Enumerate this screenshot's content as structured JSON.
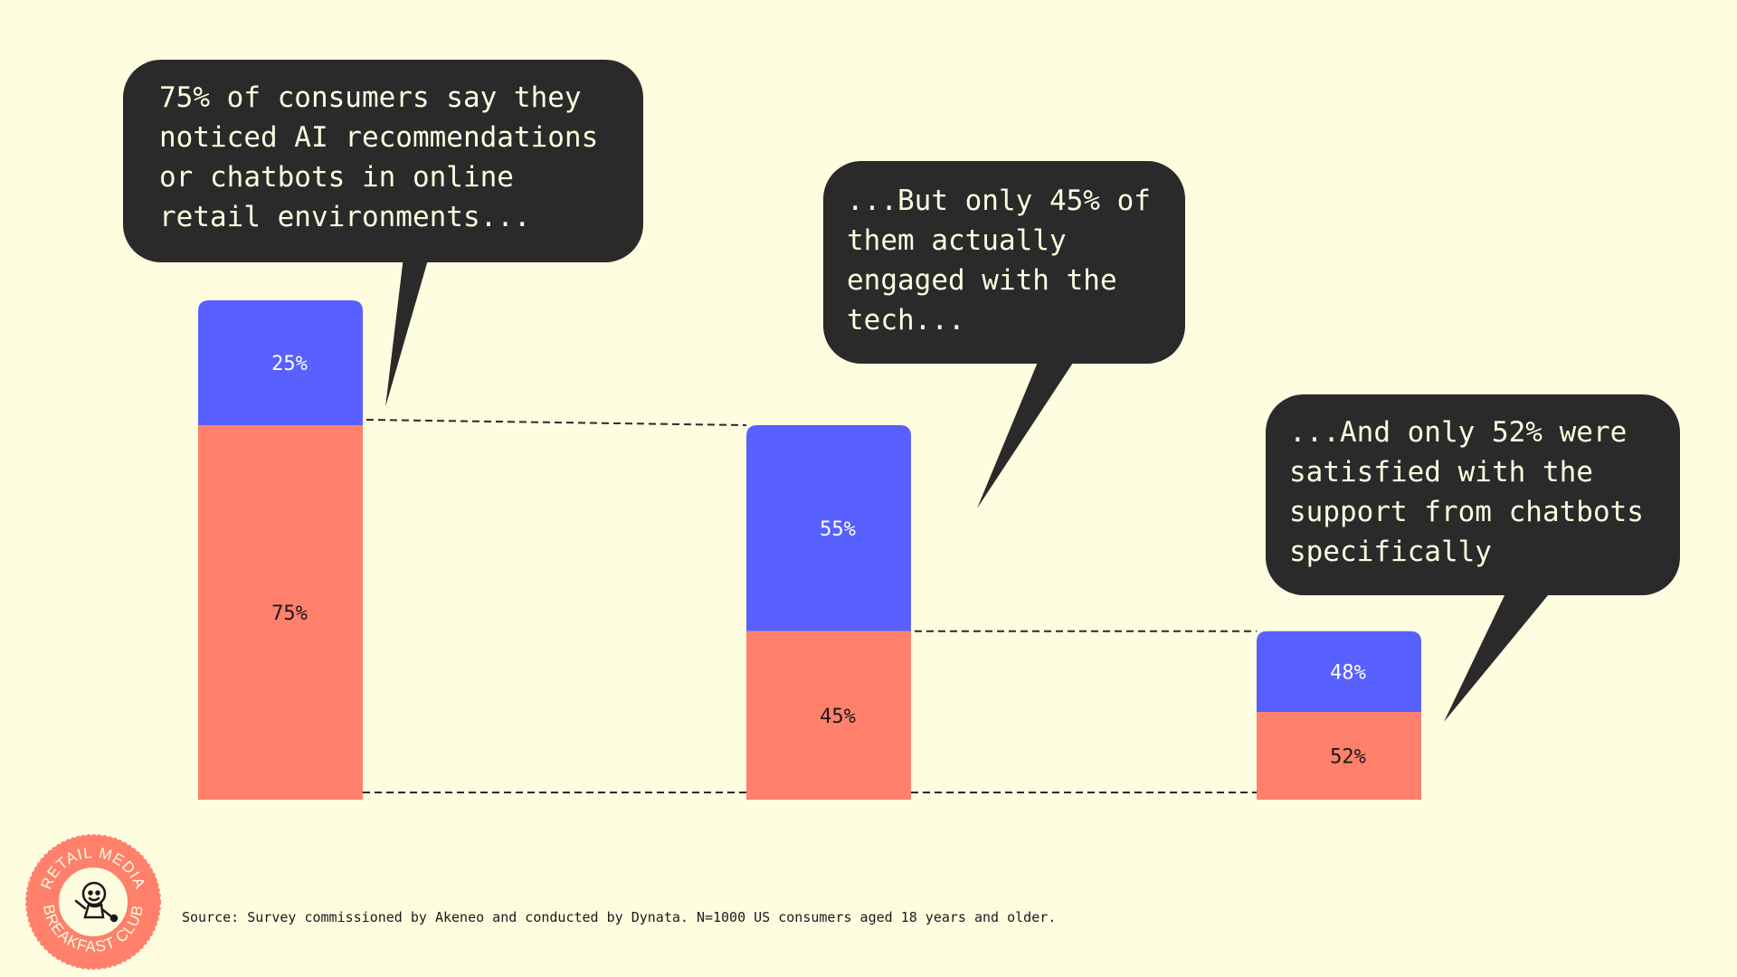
{
  "colors": {
    "background": "#fefde0",
    "bottom_segment": "#ff806b",
    "top_segment": "#5860ff",
    "bubble": "#2a2a2a",
    "bubble_text": "#fefde0",
    "connector": "#2a2a2a"
  },
  "chart_data": {
    "type": "bar",
    "stacked": true,
    "categories": [
      "",
      "",
      ""
    ],
    "series": [
      {
        "values": [
          75,
          45,
          52
        ],
        "color": "#ff806b",
        "labels": [
          "75%",
          "45%",
          "52%"
        ]
      },
      {
        "values": [
          25,
          55,
          48
        ],
        "color": "#5860ff",
        "labels": [
          "25%",
          "55%",
          "48%"
        ]
      }
    ],
    "dashed_connectors": true,
    "grid": false,
    "legend": "none"
  },
  "callouts": [
    {
      "text": "75% of consumers say they noticed AI recommendations or chatbots in online retail environments..."
    },
    {
      "text": "...But only 45% of them actually engaged with the tech..."
    },
    {
      "text": "...And only 52% were satisfied with the support from chatbots specifically"
    }
  ],
  "source": "Source: Survey commissioned by Akeneo and conducted by Dynata. N=1000 US consumers aged 18 years and older.",
  "logo": {
    "top_text": "RETAIL MEDIA",
    "bottom_text": "BREAKFAST CLUB",
    "icon": "mascot-icon"
  }
}
